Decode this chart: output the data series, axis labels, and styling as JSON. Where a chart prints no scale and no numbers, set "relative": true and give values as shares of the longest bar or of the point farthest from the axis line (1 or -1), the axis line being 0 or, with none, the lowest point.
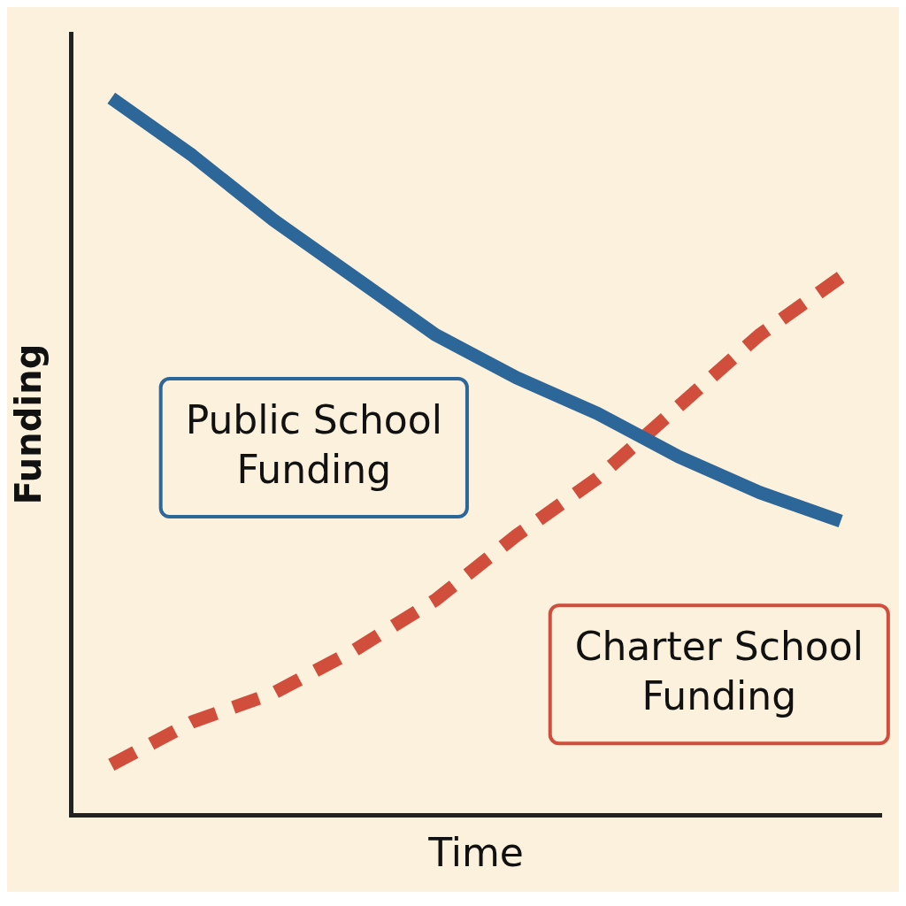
{
  "chart_data": {
    "type": "line",
    "relative": true,
    "xlabel": "Time",
    "ylabel": "Funding",
    "categories": [
      null,
      null,
      null,
      null,
      null,
      null,
      null,
      null,
      null,
      null
    ],
    "series": [
      {
        "name": "Public School Funding",
        "color": "#2d6698",
        "line_style": "solid",
        "values": [
          1,
          0.92,
          0.83,
          0.75,
          0.67,
          0.61,
          0.56,
          0.5,
          0.45,
          0.41
        ]
      },
      {
        "name": "Charter School Funding",
        "color": "#d24e3c",
        "line_style": "dashed",
        "values": [
          0.07,
          0.13,
          0.17,
          0.23,
          0.3,
          0.39,
          0.47,
          0.57,
          0.67,
          0.75
        ]
      }
    ],
    "legend": false,
    "grid": false,
    "marker": "none"
  }
}
